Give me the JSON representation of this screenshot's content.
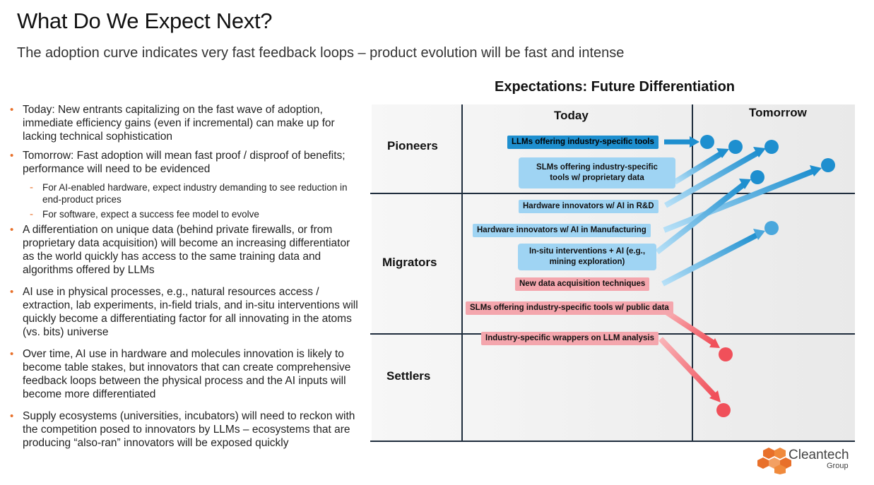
{
  "header": {
    "title": "What Do We Expect Next?",
    "subtitle": "The adoption curve indicates very fast feedback loops – product evolution will be fast and intense"
  },
  "bullets": [
    {
      "text": "Today: New entrants capitalizing on the fast wave of adoption, immediate efficiency gains (even if incremental) can make up for lacking technical sophistication",
      "sub": false
    },
    {
      "text": "Tomorrow: Fast adoption will mean fast proof / disproof of benefits; performance will need to be evidenced",
      "sub": false
    },
    {
      "text": "For AI-enabled hardware, expect industry demanding to see reduction in end-product prices",
      "sub": true
    },
    {
      "text": "For software, expect a success fee model to evolve",
      "sub": true
    },
    {
      "text": "A differentiation on unique data (behind private firewalls, or from proprietary data acquisition) will become an increasing differentiator as the world quickly has access to the same training data and algorithms offered by LLMs",
      "sub": false
    },
    {
      "text": "AI use in physical processes, e.g., natural resources access / extraction, lab experiments, in-field trials, and in-situ interventions will quickly become a differentiating factor for all innovating in the atoms (vs. bits) universe",
      "sub": false
    },
    {
      "text": "Over time, AI use in hardware and molecules innovation is likely to become table stakes, but innovators that can create comprehensive feedback loops between the physical process and the AI inputs will become more differentiated",
      "sub": false
    },
    {
      "text": "Supply ecosystems (universities, incubators) will need to reckon with the competition posed to innovators by LLMs – ecosystems that are producing “also-ran” innovators will be exposed quickly",
      "sub": false
    }
  ],
  "diagram": {
    "title": "Expectations: Future Differentiation",
    "columns": {
      "today": "Today",
      "tomorrow": "Tomorrow"
    },
    "rows": {
      "pioneers": "Pioneers",
      "migrators": "Migrators",
      "settlers": "Settlers"
    },
    "items": {
      "llm_tools": "LLMs offering industry-specific tools",
      "slm_proprietary_1": "SLMs offering industry-specific",
      "slm_proprietary_2": "tools w/ proprietary data",
      "hw_rd": "Hardware innovators w/ AI in R&D",
      "hw_mfg": "Hardware innovators w/ AI in Manufacturing",
      "insitu_1": "In-situ interventions + AI (e.g.,",
      "insitu_2": "mining exploration)",
      "new_data": "New data acquisition techniques",
      "slm_public": "SLMs offering industry-specific tools w/ public data",
      "wrappers": "Industry-specific wrappers on LLM analysis"
    },
    "colors": {
      "dark_blue": "#1e8fcf",
      "light_blue": "#9fd4f3",
      "pink": "#f4a6ad",
      "red": "#f0505a",
      "grid": "#1f2d3d"
    }
  },
  "logo": {
    "name": "Cleantech",
    "sub": "Group",
    "color": "#e8702a"
  }
}
